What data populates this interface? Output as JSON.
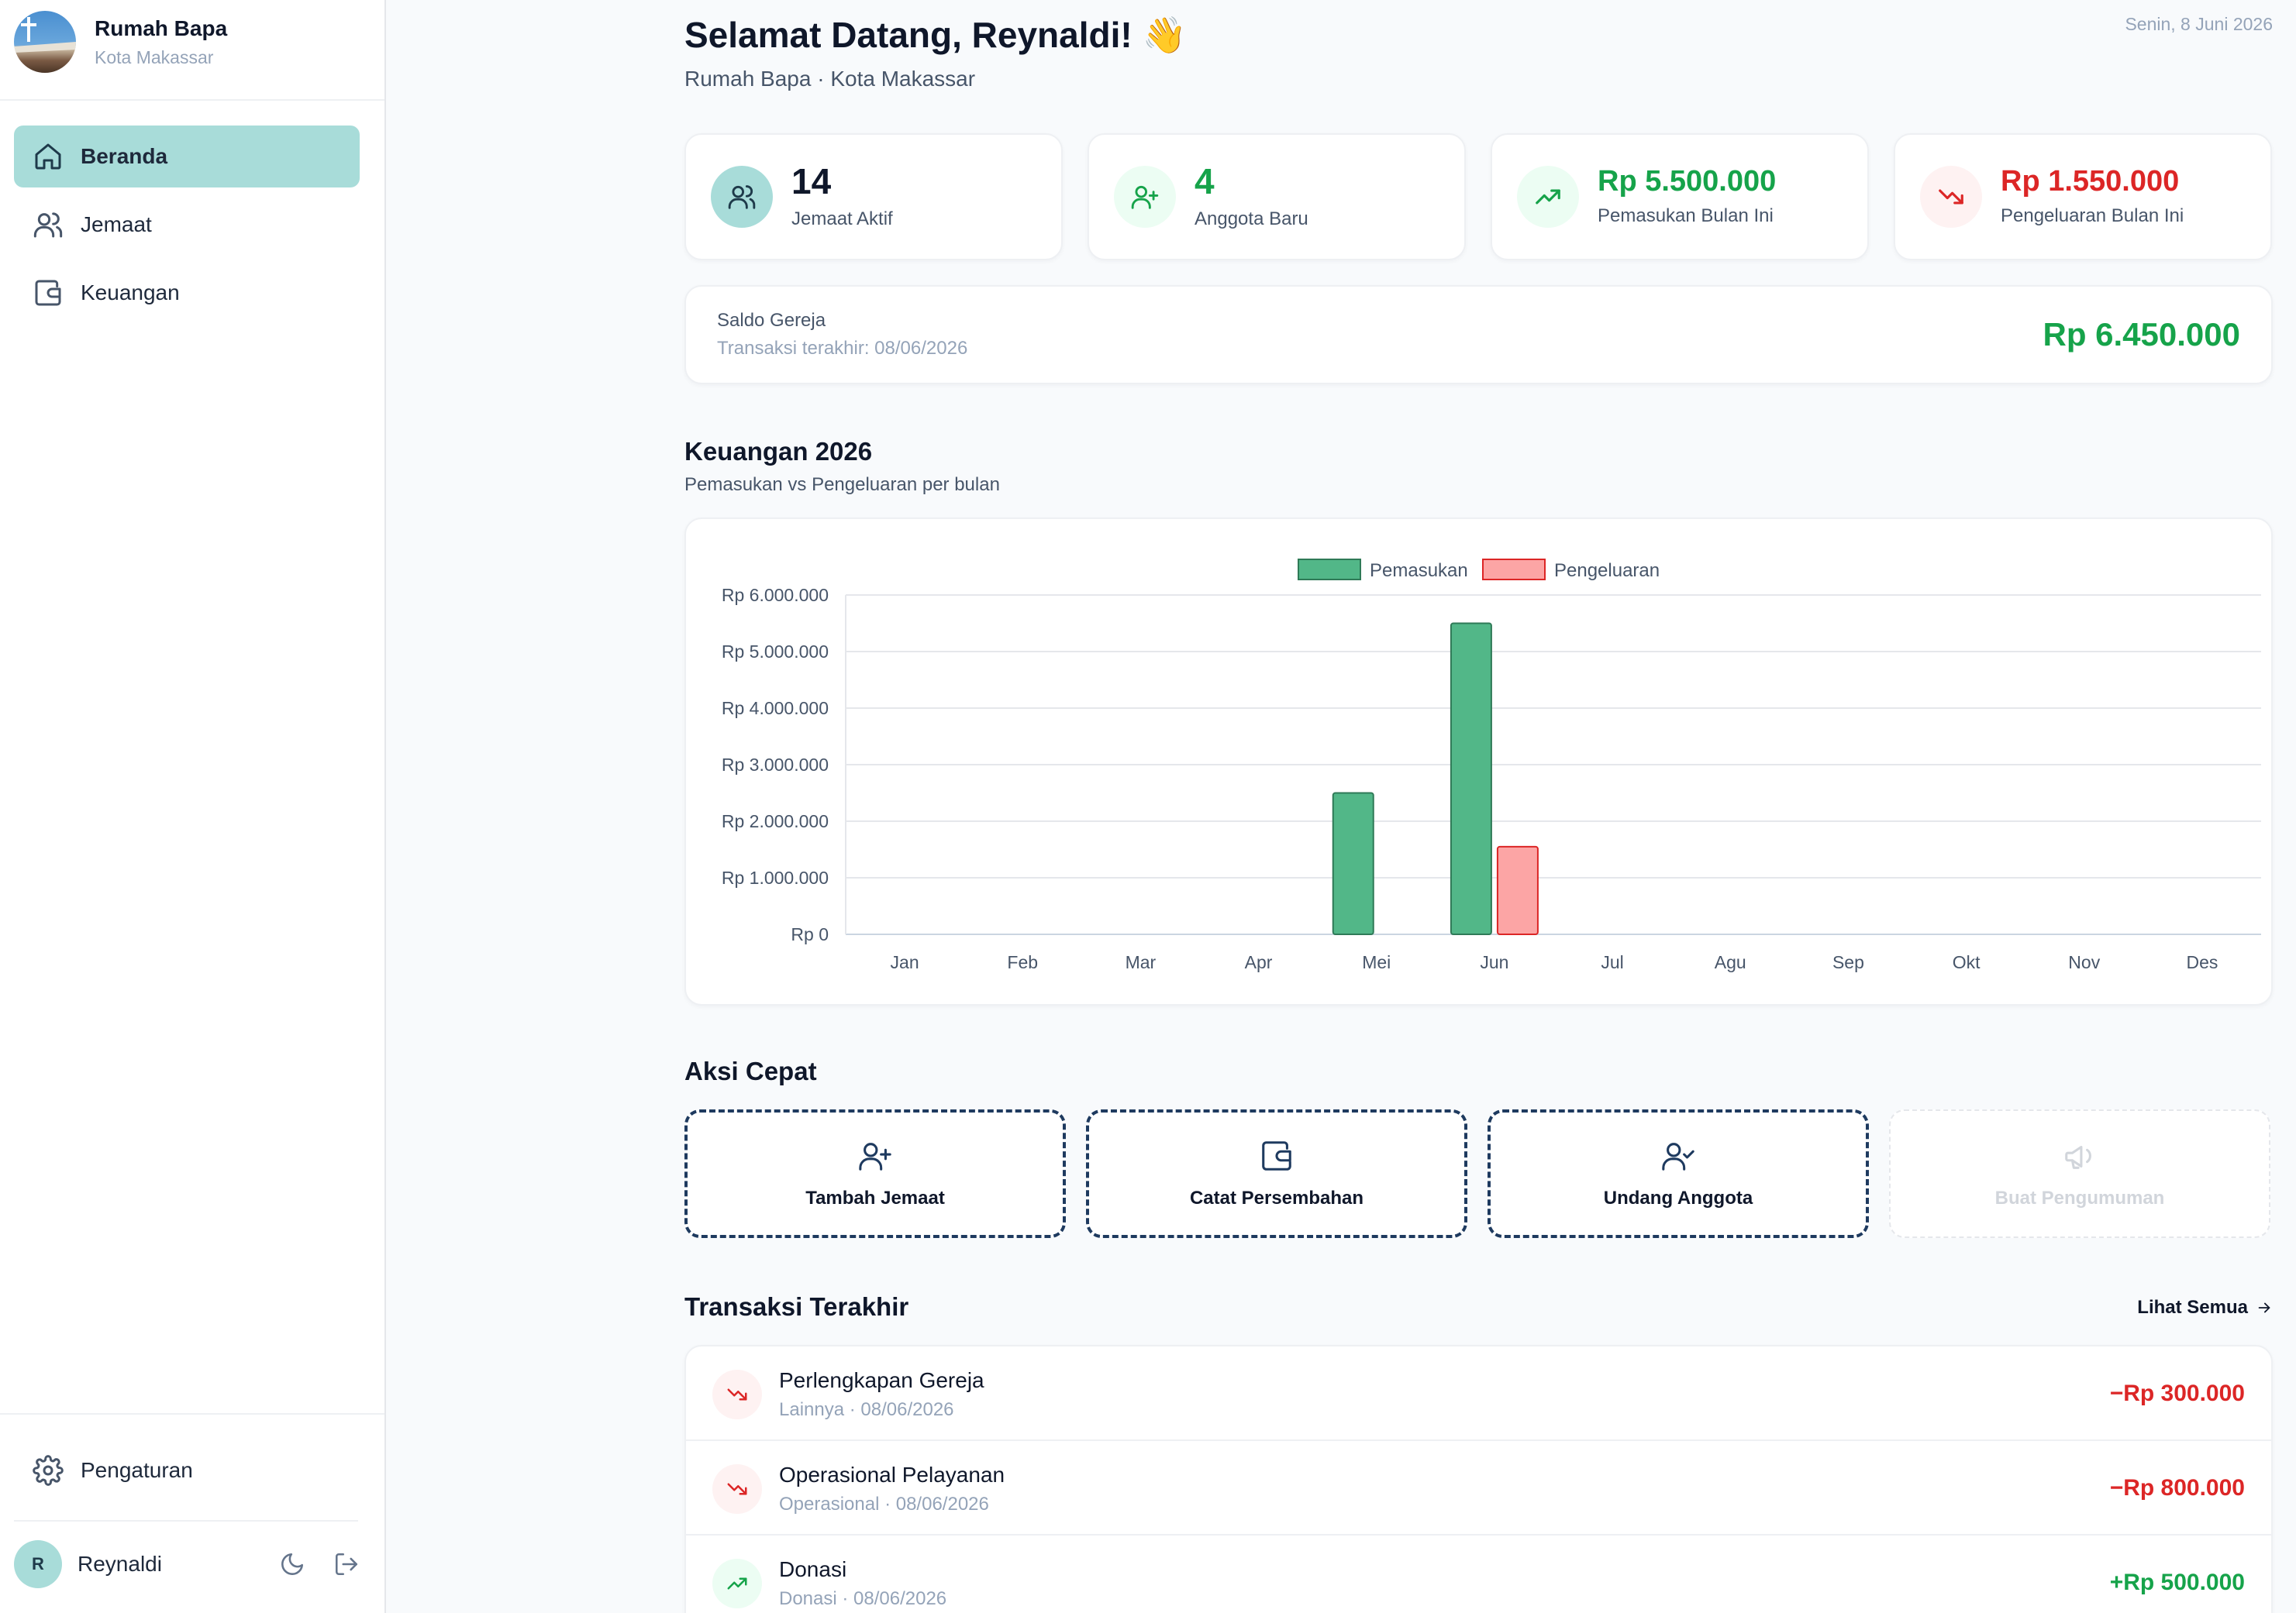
{
  "sidebar": {
    "brand_name": "Rumah Bapa",
    "brand_city": "Kota Makassar",
    "nav": [
      {
        "label": "Beranda",
        "icon": "home-icon",
        "active": true
      },
      {
        "label": "Jemaat",
        "icon": "users-icon",
        "active": false
      },
      {
        "label": "Keuangan",
        "icon": "wallet-icon",
        "active": false
      }
    ],
    "settings_label": "Pengaturan",
    "user_initial": "R",
    "user_name": "Reynaldi"
  },
  "header": {
    "welcome": "Selamat Datang, Reynaldi! 👋",
    "subtitle": "Rumah Bapa · Kota Makassar",
    "date": "Senin, 8 Juni 2026"
  },
  "stats": [
    {
      "value": "14",
      "label": "Jemaat Aktif",
      "icon": "users-icon",
      "color": "#0f172a"
    },
    {
      "value": "4",
      "label": "Anggota Baru",
      "icon": "user-plus-icon",
      "color": "#16a34a"
    },
    {
      "value": "Rp 5.500.000",
      "label": "Pemasukan Bulan Ini",
      "icon": "trending-up-icon",
      "color": "#16a34a"
    },
    {
      "value": "Rp 1.550.000",
      "label": "Pengeluaran Bulan Ini",
      "icon": "trending-down-icon",
      "color": "#dc2626"
    }
  ],
  "saldo": {
    "title": "Saldo Gereja",
    "last_tx": "Transaksi terakhir: 08/06/2026",
    "amount": "Rp 6.450.000"
  },
  "finance": {
    "title": "Keuangan 2026",
    "subtitle": "Pemasukan vs Pengeluaran per bulan"
  },
  "chart_data": {
    "type": "bar",
    "categories": [
      "Jan",
      "Feb",
      "Mar",
      "Apr",
      "Mei",
      "Jun",
      "Jul",
      "Agu",
      "Sep",
      "Okt",
      "Nov",
      "Des"
    ],
    "series": [
      {
        "name": "Pemasukan",
        "color": "#52b788",
        "values": [
          0,
          0,
          0,
          0,
          2500000,
          5500000,
          0,
          0,
          0,
          0,
          0,
          0
        ]
      },
      {
        "name": "Pengeluaran",
        "color": "#fca5a5",
        "values": [
          0,
          0,
          0,
          0,
          0,
          1550000,
          0,
          0,
          0,
          0,
          0,
          0
        ]
      }
    ],
    "ylim": [
      0,
      6000000
    ],
    "yticks": [
      "Rp 0",
      "Rp 1.000.000",
      "Rp 2.000.000",
      "Rp 3.000.000",
      "Rp 4.000.000",
      "Rp 5.000.000",
      "Rp 6.000.000"
    ],
    "legend": "top-center",
    "grid": true
  },
  "quick_actions": {
    "title": "Aksi Cepat",
    "items": [
      {
        "label": "Tambah Jemaat",
        "icon": "user-plus-icon",
        "enabled": true
      },
      {
        "label": "Catat Persembahan",
        "icon": "wallet-icon",
        "enabled": true
      },
      {
        "label": "Undang Anggota",
        "icon": "user-check-icon",
        "enabled": true
      },
      {
        "label": "Buat Pengumuman",
        "icon": "megaphone-icon",
        "enabled": false
      }
    ]
  },
  "transactions": {
    "title": "Transaksi Terakhir",
    "see_all": "Lihat Semua",
    "items": [
      {
        "title": "Perlengkapan Gereja",
        "meta": "Lainnya · 08/06/2026",
        "amount": "−Rp 300.000",
        "type": "out"
      },
      {
        "title": "Operasional Pelayanan",
        "meta": "Operasional · 08/06/2026",
        "amount": "−Rp 800.000",
        "type": "out"
      },
      {
        "title": "Donasi",
        "meta": "Donasi · 08/06/2026",
        "amount": "+Rp 500.000",
        "type": "in"
      }
    ]
  }
}
